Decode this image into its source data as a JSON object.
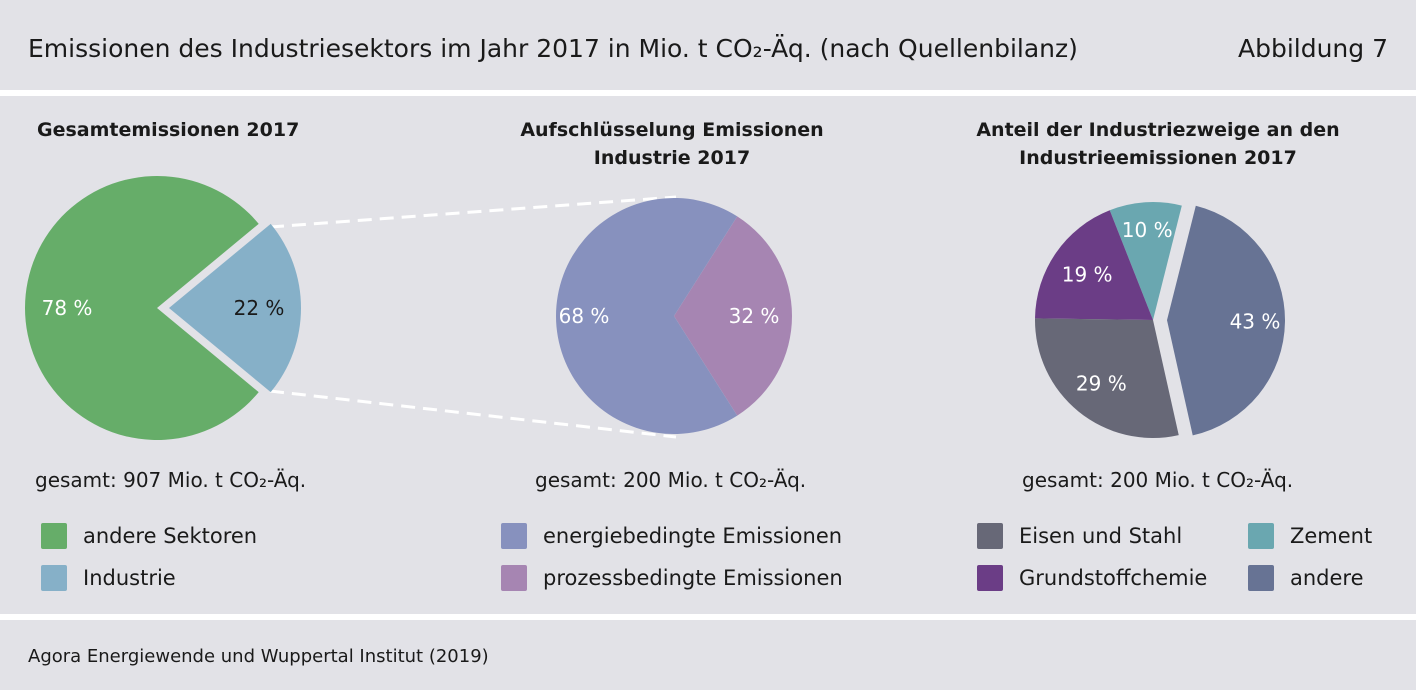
{
  "header": {
    "title": "Emissionen des Industriesektors im Jahr 2017 in Mio. t CO₂-Äq. (nach Quellenbilanz)",
    "figure_label": "Abbildung 7"
  },
  "footer": {
    "source": "Agora Energiewende und Wuppertal Institut (2019)"
  },
  "chart_data": [
    {
      "type": "pie",
      "title": "Gesamtemissionen 2017",
      "total_label": "gesamt: 907 Mio. t CO₂-Äq.",
      "slices": [
        {
          "name": "andere Sektoren",
          "value": 78,
          "label": "78 %",
          "color": "#66ad69"
        },
        {
          "name": "Industrie",
          "value": 22,
          "label": "22 %",
          "color": "#86b0c8",
          "exploded": true
        }
      ]
    },
    {
      "type": "pie",
      "title": "Aufschlüsselung Emissionen Industrie 2017",
      "total_label": "gesamt: 200 Mio. t CO₂-Äq.",
      "slices": [
        {
          "name": "energiebedingte Emissionen",
          "value": 68,
          "label": "68 %",
          "color": "#8791be"
        },
        {
          "name": "prozessbedingte Emissionen",
          "value": 32,
          "label": "32 %",
          "color": "#a685b2"
        }
      ]
    },
    {
      "type": "pie",
      "title": "Anteil der Industriezweige an den Industrieemissionen 2017",
      "total_label": "gesamt: 200 Mio. t CO₂-Äq.",
      "slices": [
        {
          "name": "andere",
          "value": 43,
          "label": "43 %",
          "color": "#677394",
          "exploded": true
        },
        {
          "name": "Eisen und Stahl",
          "value": 29,
          "label": "29 %",
          "color": "#676877"
        },
        {
          "name": "Grundstoffchemie",
          "value": 19,
          "label": "19 %",
          "color": "#6b3d86"
        },
        {
          "name": "Zement",
          "value": 10,
          "label": "10 %",
          "color": "#6aa7b0"
        }
      ]
    }
  ],
  "panels": [
    {
      "title": "Gesamtemissionen 2017",
      "total": "gesamt: 907 Mio. t CO₂-Äq.",
      "legend": [
        {
          "label": "andere Sektoren",
          "color": "#66ad69"
        },
        {
          "label": "Industrie",
          "color": "#86b0c8"
        }
      ]
    },
    {
      "title_line1": "Aufschlüsselung Emissionen",
      "title_line2": "Industrie 2017",
      "total": "gesamt: 200 Mio. t CO₂-Äq.",
      "legend": [
        {
          "label": "energiebedingte Emissionen",
          "color": "#8791be"
        },
        {
          "label": "prozessbedingte Emissionen",
          "color": "#a685b2"
        }
      ]
    },
    {
      "title_line1": "Anteil der Industriezweige an den",
      "title_line2": "Industrieemissionen 2017",
      "total": "gesamt: 200 Mio. t CO₂-Äq.",
      "legend": [
        {
          "label": "Eisen und Stahl",
          "color": "#676877"
        },
        {
          "label": "Zement",
          "color": "#6aa7b0"
        },
        {
          "label": "Grundstoffchemie",
          "color": "#6b3d86"
        },
        {
          "label": "andere",
          "color": "#677394"
        }
      ]
    }
  ]
}
